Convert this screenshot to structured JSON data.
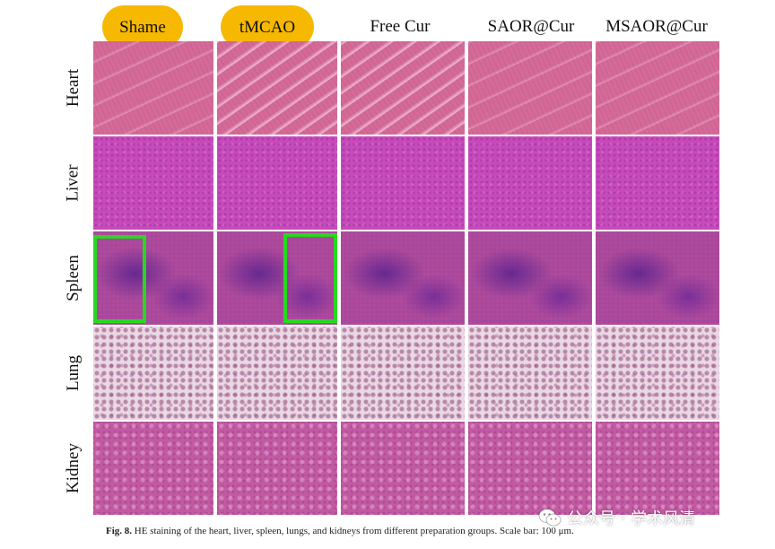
{
  "columns": [
    {
      "label": "Shame",
      "highlighted": true
    },
    {
      "label": "tMCAO",
      "highlighted": true
    },
    {
      "label": "Free Cur",
      "highlighted": false
    },
    {
      "label": "SAOR@Cur",
      "highlighted": false
    },
    {
      "label": "MSAOR@Cur",
      "highlighted": false
    }
  ],
  "rows": [
    {
      "label": "Heart",
      "tissue": "heart"
    },
    {
      "label": "Liver",
      "tissue": "liver"
    },
    {
      "label": "Spleen",
      "tissue": "spleen"
    },
    {
      "label": "Lung",
      "tissue": "lung"
    },
    {
      "label": "Kidney",
      "tissue": "kidney"
    }
  ],
  "caption": {
    "fig_label": "Fig. 8.",
    "text": "HE staining of the heart, liver, spleen, lungs, and kidneys from different preparation groups. Scale bar: 100 μm."
  },
  "watermark": {
    "text": "公众号 · 学术风清",
    "icon": "wechat-icon"
  },
  "colors": {
    "highlight": "#f6b800",
    "annotation_box": "#27d81f"
  }
}
